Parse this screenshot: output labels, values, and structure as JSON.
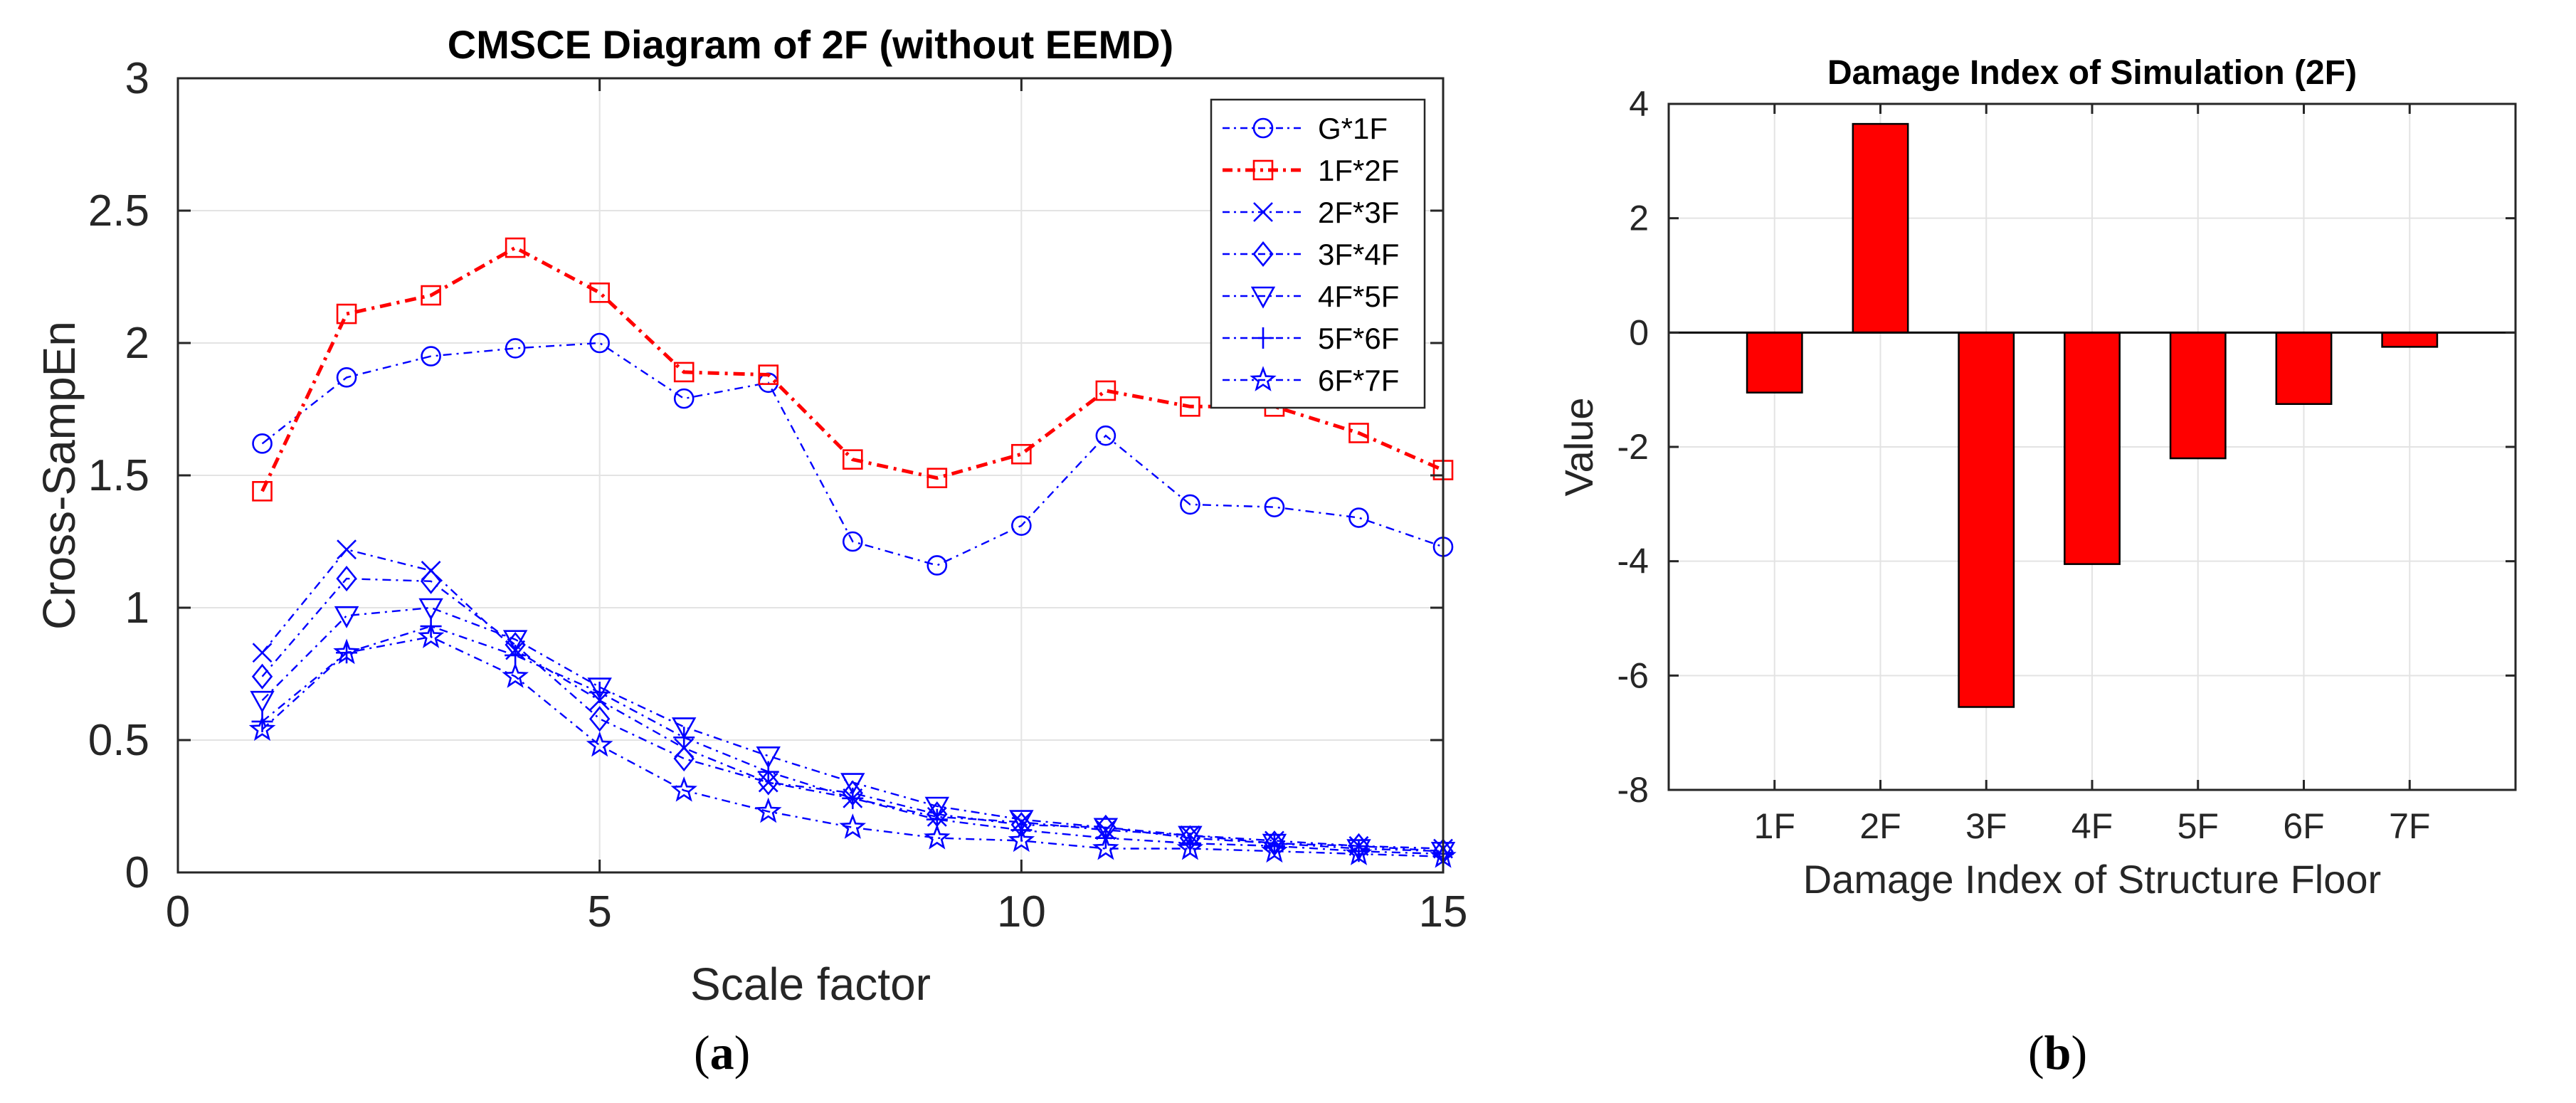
{
  "panels": [
    {
      "open": "(",
      "letter": "a",
      "close": ")"
    },
    {
      "open": "(",
      "letter": "b",
      "close": ")"
    }
  ],
  "chart_data": [
    {
      "type": "line",
      "title": "CMSCE Diagram of 2F (without EEMD)",
      "xlabel": "Scale factor",
      "ylabel": "Cross-SampEn",
      "xlim": [
        0,
        15
      ],
      "ylim": [
        0,
        3
      ],
      "xticks": [
        0,
        5,
        10,
        15
      ],
      "yticks": [
        0,
        0.5,
        1,
        1.5,
        2,
        2.5,
        3
      ],
      "grid": true,
      "legend_position": "top-right",
      "x": [
        1,
        2,
        3,
        4,
        5,
        6,
        7,
        8,
        9,
        10,
        11,
        12,
        13,
        14,
        15
      ],
      "series": [
        {
          "name": "G*1F",
          "color": "#0000ff",
          "marker": "circle",
          "values": [
            1.62,
            1.87,
            1.95,
            1.98,
            2.0,
            1.79,
            1.85,
            1.25,
            1.16,
            1.31,
            1.65,
            1.39,
            1.38,
            1.34,
            1.23
          ]
        },
        {
          "name": "1F*2F",
          "color": "#ff0000",
          "marker": "square",
          "values": [
            1.44,
            2.11,
            2.18,
            2.36,
            2.19,
            1.89,
            1.88,
            1.56,
            1.49,
            1.58,
            1.82,
            1.76,
            1.76,
            1.66,
            1.52
          ]
        },
        {
          "name": "2F*3F",
          "color": "#0000ff",
          "marker": "x",
          "values": [
            0.83,
            1.22,
            1.14,
            0.84,
            0.65,
            0.47,
            0.34,
            0.28,
            0.21,
            0.19,
            0.16,
            0.14,
            0.12,
            0.1,
            0.09
          ]
        },
        {
          "name": "3F*4F",
          "color": "#0000ff",
          "marker": "diamond",
          "values": [
            0.74,
            1.11,
            1.1,
            0.86,
            0.58,
            0.43,
            0.34,
            0.3,
            0.22,
            0.18,
            0.17,
            0.13,
            0.11,
            0.1,
            0.08
          ]
        },
        {
          "name": "4F*5F",
          "color": "#0000ff",
          "marker": "triangle-down",
          "values": [
            0.65,
            0.97,
            1.0,
            0.88,
            0.7,
            0.55,
            0.44,
            0.34,
            0.25,
            0.2,
            0.17,
            0.14,
            0.11,
            0.09,
            0.08
          ]
        },
        {
          "name": "5F*6F",
          "color": "#0000ff",
          "marker": "plus",
          "values": [
            0.57,
            0.83,
            0.93,
            0.82,
            0.68,
            0.51,
            0.38,
            0.28,
            0.2,
            0.16,
            0.13,
            0.11,
            0.1,
            0.08,
            0.07
          ]
        },
        {
          "name": "6F*7F",
          "color": "#0000ff",
          "marker": "star",
          "values": [
            0.54,
            0.83,
            0.89,
            0.74,
            0.48,
            0.31,
            0.23,
            0.17,
            0.13,
            0.12,
            0.09,
            0.09,
            0.08,
            0.07,
            0.06
          ]
        }
      ]
    },
    {
      "type": "bar",
      "title": "Damage Index of Simulation (2F)",
      "xlabel": "Damage Index of Structure Floor",
      "ylabel": "Value",
      "ylim": [
        -8,
        4
      ],
      "yticks": [
        -8,
        -6,
        -4,
        -2,
        0,
        2,
        4
      ],
      "grid": true,
      "bar_color": "#ff0000",
      "categories": [
        "1F",
        "2F",
        "3F",
        "4F",
        "5F",
        "6F",
        "7F"
      ],
      "values": [
        -1.05,
        3.65,
        -6.55,
        -4.05,
        -2.2,
        -1.25,
        -0.25
      ]
    }
  ]
}
